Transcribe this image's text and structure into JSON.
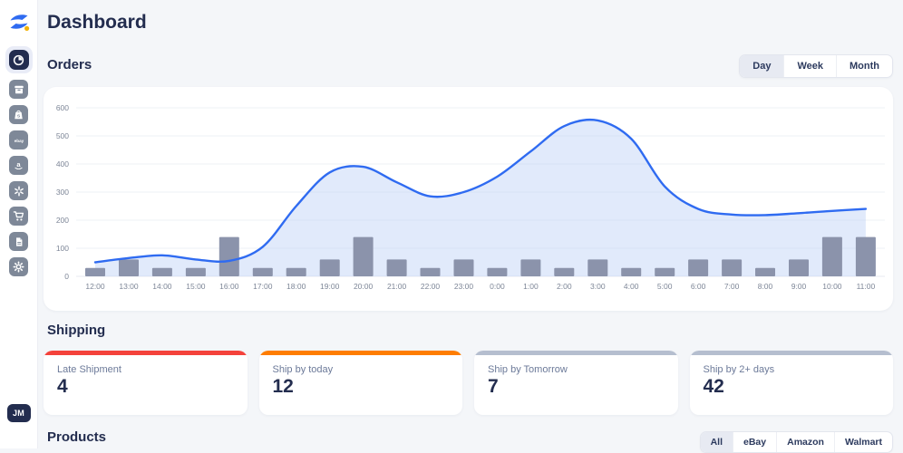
{
  "app": {
    "title": "Dashboard",
    "avatar_initials": "JM"
  },
  "sidebar": {
    "items": [
      {
        "id": "dashboard",
        "icon": "clock-pie-icon",
        "active": true
      },
      {
        "id": "inventory",
        "icon": "package-box-icon",
        "active": false
      },
      {
        "id": "shopify",
        "icon": "shopify-bag-icon",
        "active": false
      },
      {
        "id": "ebay",
        "icon": "ebay-icon",
        "active": false
      },
      {
        "id": "amazon",
        "icon": "amazon-icon",
        "active": false
      },
      {
        "id": "walmart",
        "icon": "walmart-spark-icon",
        "active": false
      },
      {
        "id": "cart",
        "icon": "shopping-cart-icon",
        "active": false
      },
      {
        "id": "documents",
        "icon": "document-icon",
        "active": false
      },
      {
        "id": "settings",
        "icon": "gear-icon",
        "active": false
      }
    ]
  },
  "orders": {
    "heading": "Orders",
    "range_tabs": [
      {
        "label": "Day",
        "active": true
      },
      {
        "label": "Week",
        "active": false
      },
      {
        "label": "Month",
        "active": false
      }
    ]
  },
  "chart_data": {
    "type": "combo",
    "title": "Orders",
    "x": [
      "12:00",
      "13:00",
      "14:00",
      "15:00",
      "16:00",
      "17:00",
      "18:00",
      "19:00",
      "20:00",
      "21:00",
      "22:00",
      "23:00",
      "0:00",
      "1:00",
      "2:00",
      "3:00",
      "4:00",
      "5:00",
      "6:00",
      "7:00",
      "8:00",
      "9:00",
      "10:00",
      "11:00"
    ],
    "series": [
      {
        "name": "orders-trend",
        "type": "line",
        "values": [
          50,
          65,
          75,
          60,
          55,
          105,
          250,
          370,
          390,
          335,
          285,
          300,
          355,
          445,
          535,
          555,
          490,
          320,
          240,
          220,
          218,
          225,
          233,
          240
        ]
      },
      {
        "name": "orders-per-hour",
        "type": "bar",
        "values": [
          30,
          60,
          30,
          30,
          140,
          30,
          30,
          60,
          140,
          60,
          30,
          60,
          30,
          60,
          30,
          60,
          30,
          30,
          60,
          60,
          30,
          60,
          140,
          140
        ]
      }
    ],
    "ylim": [
      0,
      600
    ],
    "yticks": [
      0,
      100,
      200,
      300,
      400,
      500,
      600
    ],
    "grid": true,
    "legend": "none",
    "line_color": "#2f6bf1",
    "area_color": "rgba(189,208,246,0.45)",
    "bar_color": "#8b93ab",
    "axis_text_color": "#7d8697",
    "grid_color": "#eef1f6"
  },
  "shipping": {
    "heading": "Shipping",
    "cards": [
      {
        "label": "Late Shipment",
        "value": "4",
        "accent_color": "#f4423b"
      },
      {
        "label": "Ship by today",
        "value": "12",
        "accent_color": "#fe7d01"
      },
      {
        "label": "Ship by Tomorrow",
        "value": "7",
        "accent_color": "#b5becf"
      },
      {
        "label": "Ship by 2+ days",
        "value": "42",
        "accent_color": "#b5becf"
      }
    ]
  },
  "products": {
    "heading": "Products",
    "tabs": [
      {
        "label": "All",
        "active": true
      },
      {
        "label": "eBay",
        "active": false
      },
      {
        "label": "Amazon",
        "active": false
      },
      {
        "label": "Walmart",
        "active": false
      }
    ]
  },
  "colors": {
    "accent_blue": "#2f6bf1",
    "logo_gold": "#f2b30a",
    "navy": "#232d4f",
    "page_bg": "#f4f6f9",
    "icon_gray": "#7e8898"
  }
}
